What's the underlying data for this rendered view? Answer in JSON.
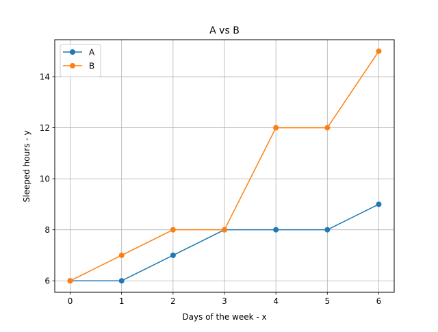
{
  "chart_data": {
    "type": "line",
    "title": "A vs B",
    "xlabel": "Days of the week - x",
    "ylabel": "Sleeped hours - y",
    "x": [
      0,
      1,
      2,
      3,
      4,
      5,
      6
    ],
    "xticks": [
      0,
      1,
      2,
      3,
      4,
      5,
      6
    ],
    "yticks": [
      6,
      8,
      10,
      12,
      14
    ],
    "xlim": [
      -0.3,
      6.3
    ],
    "ylim": [
      5.55,
      15.45
    ],
    "grid": true,
    "legend_position": "top-left",
    "series": [
      {
        "name": "A",
        "color": "#1f77b4",
        "marker": "circle",
        "values": [
          6,
          6,
          7,
          8,
          8,
          8,
          9
        ]
      },
      {
        "name": "B",
        "color": "#ff7f0e",
        "marker": "circle",
        "values": [
          6,
          7,
          8,
          8,
          12,
          12,
          15
        ]
      }
    ]
  }
}
